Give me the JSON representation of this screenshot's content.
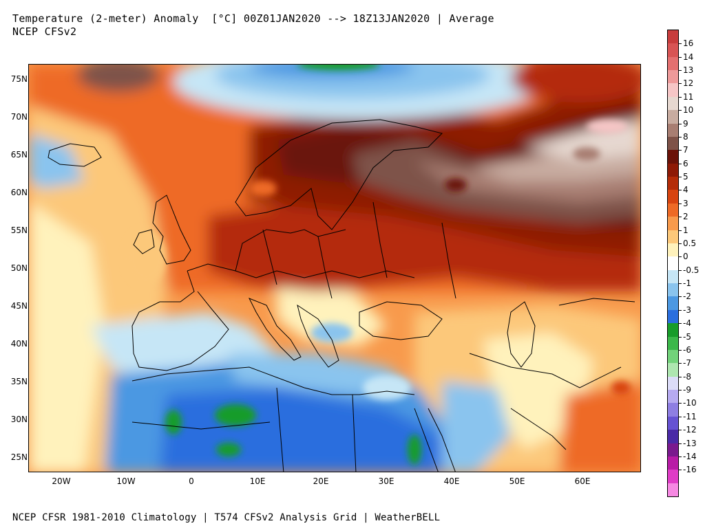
{
  "header": {
    "title": "Temperature (2-meter) Anomaly  [°C] 00Z01JAN2020 --> 18Z13JAN2020 | Average",
    "subtitle": "NCEP CFSv2"
  },
  "footer": {
    "text": "NCEP CFSR 1981-2010 Climatology | T574 CFSv2 Analysis Grid | WeatherBELL"
  },
  "map": {
    "latitude_labels": [
      "75N",
      "70N",
      "65N",
      "60N",
      "55N",
      "50N",
      "45N",
      "40N",
      "35N",
      "30N",
      "25N"
    ],
    "longitude_labels": [
      "20W",
      "10W",
      "0",
      "10E",
      "20E",
      "30E",
      "40E",
      "50E",
      "60E"
    ]
  },
  "colorbar": {
    "labels": [
      "16",
      "14",
      "13",
      "12",
      "11",
      "10",
      "9",
      "8",
      "7",
      "6",
      "5",
      "4",
      "3",
      "2",
      "1",
      "0.5",
      "0",
      "-0.5",
      "-1",
      "-2",
      "-3",
      "-4",
      "-5",
      "-6",
      "-7",
      "-8",
      "-9",
      "-10",
      "-11",
      "-12",
      "-13",
      "-14",
      "-16"
    ],
    "colors": [
      "#c83c3c",
      "#d85454",
      "#e47070",
      "#ee9a9a",
      "#f6c6c6",
      "#e6d8d0",
      "#c8aca0",
      "#a87e72",
      "#7e5248",
      "#6a1208",
      "#8e1a06",
      "#b42c08",
      "#d84410",
      "#ee6a26",
      "#f89a4c",
      "#fcc87a",
      "#fff2bc",
      "#ffffff",
      "#c6e6f6",
      "#8ac4ee",
      "#4c98e2",
      "#2a6ede",
      "#189c2a",
      "#3cb84a",
      "#72d27a",
      "#aee6b0",
      "#dcdcf8",
      "#b6aaf0",
      "#8e7ee2",
      "#6652d2",
      "#4a2aa6",
      "#7a1a8e",
      "#b81ca6",
      "#e03cc6",
      "#f688e2"
    ]
  }
}
